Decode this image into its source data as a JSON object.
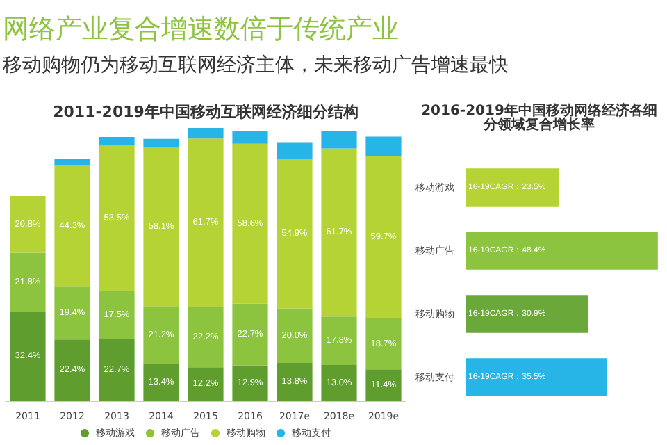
{
  "chart_data": [
    {
      "type": "other",
      "title": "网络产业复合增速数倍于传统产业",
      "subtitle": "移动购物仍为移动互联网经济主体，未来移动广告增速最快"
    },
    {
      "type": "bar",
      "title": "2011-2019年中国移动互联网经济细分结构",
      "stacked": true,
      "categories": [
        "2011",
        "2012",
        "2013",
        "2014",
        "2015",
        "2016",
        "2017e",
        "2018e",
        "2019e"
      ],
      "legend": "bottom",
      "tick_labels": "x",
      "series": [
        {
          "name": "移动游戏",
          "color": "#5f9e2e",
          "values": [
            32.4,
            22.4,
            22.7,
            13.4,
            12.2,
            12.9,
            13.8,
            13.0,
            11.4
          ],
          "value_labels": [
            "32.4%",
            "22.4%",
            "22.7%",
            "13.4%",
            "12.2%",
            "12.9%",
            "13.8%",
            "13.0%",
            "11.4%"
          ]
        },
        {
          "name": "移动广告",
          "color": "#8cc43f",
          "values": [
            21.8,
            19.4,
            17.5,
            21.2,
            22.2,
            22.7,
            20.0,
            17.8,
            18.7
          ],
          "value_labels": [
            "21.8%",
            "19.4%",
            "17.5%",
            "21.2%",
            "22.2%",
            "22.7%",
            "20.0%",
            "17.8%",
            "18.7%"
          ]
        },
        {
          "name": "移动购物",
          "color": "#b5d334",
          "values": [
            20.8,
            44.3,
            53.5,
            58.1,
            61.7,
            58.6,
            54.9,
            61.7,
            59.7
          ],
          "value_labels": [
            "20.8%",
            "44.3%",
            "53.5%",
            "58.1%",
            "61.7%",
            "58.6%",
            "54.9%",
            "61.7%",
            "59.7%"
          ]
        },
        {
          "name": "移动支付",
          "color": "#27b4e6",
          "values": [
            null,
            2.7,
            3.0,
            3.3,
            3.9,
            4.7,
            6.1,
            6.5,
            7.0
          ],
          "value_labels": [
            null,
            null,
            null,
            null,
            null,
            null,
            null,
            null,
            null
          ]
        }
      ]
    },
    {
      "type": "bar",
      "orientation": "horizontal",
      "title": "2016-2019年中国移动网络经济各细分领域复合增长率",
      "categories": [
        "移动游戏",
        "移动广告",
        "移动购物",
        "移动支付"
      ],
      "values": [
        23.5,
        48.4,
        30.9,
        35.5
      ],
      "colors": [
        "#b5d334",
        "#8cc43f",
        "#6aa83a",
        "#27b4e6"
      ],
      "value_labels": [
        "16-19CAGR：23.5%",
        "16-19CAGR：48.4%",
        "16-19CAGR：30.9%",
        "16-19CAGR：35.5%"
      ],
      "tick_labels": "y"
    }
  ]
}
